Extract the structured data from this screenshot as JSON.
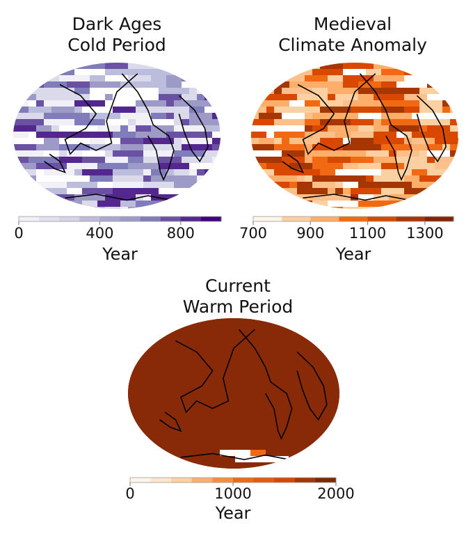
{
  "panels": [
    {
      "title_line1": "Dark Ages",
      "title_line2": "Cold Period",
      "colorbar": {
        "min": 0,
        "max": 1000,
        "ticks": [
          "0",
          "400",
          "800"
        ],
        "tick_values": [
          0,
          400,
          800
        ],
        "label": "Year",
        "colors": [
          "#f2f0f7",
          "#e3e1ef",
          "#d4d3e8",
          "#bcbddc",
          "#a9a8d0",
          "#9e9ac8",
          "#807dba",
          "#6a51a3",
          "#54278f",
          "#3f007d"
        ]
      },
      "map_fill": [
        "#f2f0f7",
        "#dadaeb",
        "#bcbddc",
        "#9e9ac8",
        "#807dba",
        "#6a51a3",
        "#54278f",
        "#ffffff"
      ]
    },
    {
      "title_line1": "Medieval",
      "title_line2": "Climate Anomaly",
      "colorbar": {
        "min": 700,
        "max": 1400,
        "ticks": [
          "700",
          "900",
          "1100",
          "1300"
        ],
        "tick_values": [
          700,
          900,
          1100,
          1300
        ],
        "label": "Year",
        "colors": [
          "#fff5eb",
          "#fdd0a2",
          "#fdae6b",
          "#f16913",
          "#d94801",
          "#a63603",
          "#7f2704"
        ]
      },
      "map_fill": [
        "#fdd0a2",
        "#fdc08a",
        "#fdae6b",
        "#f16913",
        "#d94801",
        "#a63603",
        "#ffffff"
      ]
    },
    {
      "title_line1": "Current",
      "title_line2": "Warm Period",
      "colorbar": {
        "min": 0,
        "max": 2000,
        "ticks": [
          "0",
          "1000",
          "2000"
        ],
        "tick_values": [
          0,
          1000,
          2000
        ],
        "label": "Year",
        "colors": [
          "#fff5eb",
          "#fee6ce",
          "#fdd0a2",
          "#fdae6b",
          "#fd8d3c",
          "#f16913",
          "#e55a0c",
          "#d94801",
          "#a63603",
          "#7f2704"
        ]
      },
      "map_fill": [
        "#882a07",
        "#882a07",
        "#882a07",
        "#882a07",
        "#882a07",
        "#882a07",
        "#882a07",
        "#882a07",
        "#f16913",
        "#ffffff"
      ]
    }
  ]
}
